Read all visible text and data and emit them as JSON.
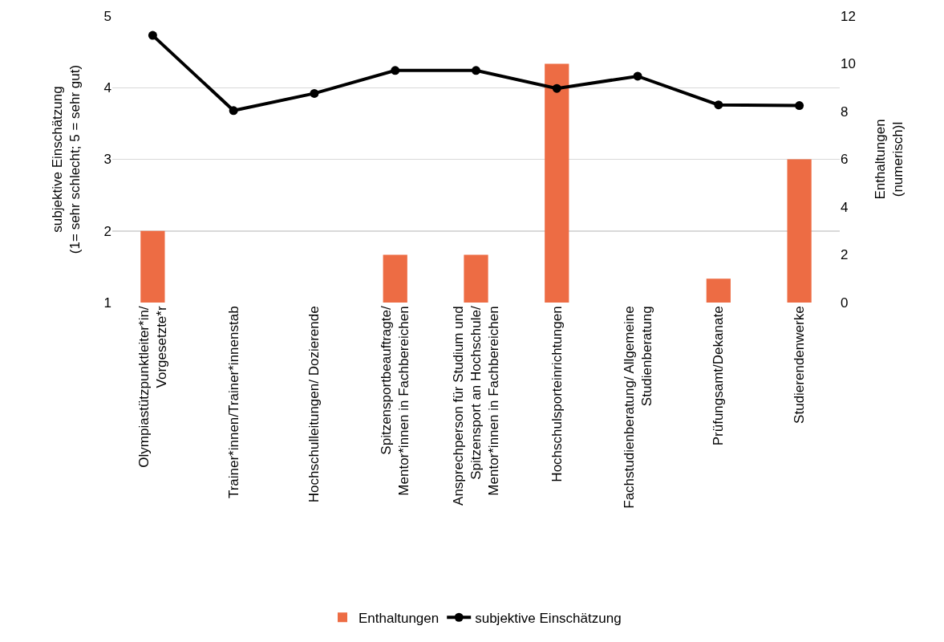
{
  "chart_data": {
    "type": "bar",
    "categories": [
      "Olympiastützpunktleiter*in/\nVorgesetzte*r",
      "Trainer*innen/Trainer*innenstab",
      "Hochschulleitungen/ Dozierende",
      "Spitzensportbeauftragte/\nMentor*innen in Fachbereichen",
      "Ansprechperson für Studium und\nSpitzensport an Hochschule/\nMentor*innen in Fachbereichen",
      "Hochschulsporteinrichtungen",
      "Fachstudienberatung/ Allgemeine\nStudienberatung",
      "Prüfungsamt/Dekanate",
      "Studierendenwerke"
    ],
    "series": [
      {
        "name": "Enthaltungen",
        "axis": "y2",
        "color": "#ed6c44",
        "values": [
          3,
          0,
          0,
          2,
          2,
          10,
          0,
          1,
          6
        ]
      },
      {
        "name": "subjektive Einschätzung",
        "type": "line",
        "axis": "y",
        "color": "#000000",
        "values": [
          4.73,
          3.68,
          3.92,
          4.24,
          4.24,
          3.99,
          4.16,
          3.76,
          3.75
        ]
      }
    ],
    "ylabel": "subjektive Einschätzung\n(1= sehr schlecht; 5 = sehr gut)",
    "y2label": "Enthaltungen\n(numerisch)l",
    "ylim": [
      1,
      5
    ],
    "yticks": [
      1,
      2,
      3,
      4,
      5
    ],
    "y2lim": [
      0,
      12
    ],
    "y2ticks": [
      0,
      2,
      4,
      6,
      8,
      10,
      12
    ],
    "grid": "y",
    "legend": "bottom",
    "marker": "circle",
    "line_style": "solid"
  }
}
